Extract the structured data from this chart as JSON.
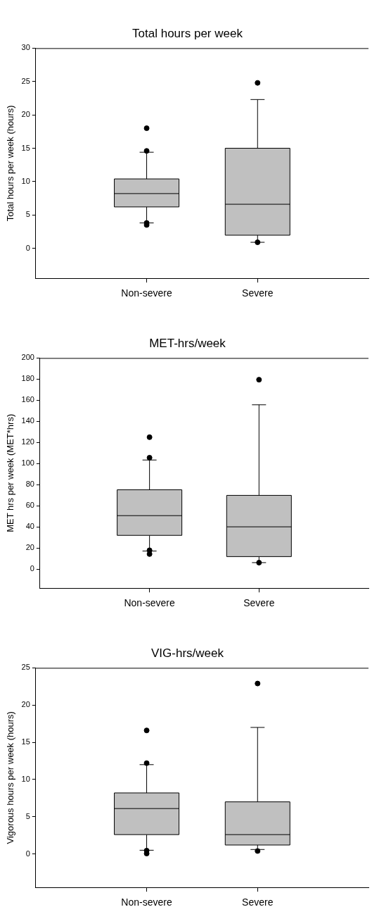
{
  "chart_data": [
    {
      "type": "box",
      "title": "Total hours per week",
      "ylabel": "Total hours per week (hours)",
      "categories": [
        "Non-severe",
        "Severe"
      ],
      "color": "#c0c0c0",
      "ylim": [
        -4.5,
        30
      ],
      "yticks": [
        0,
        5,
        10,
        15,
        20,
        25,
        30
      ],
      "grid": false,
      "boxes": [
        {
          "low": 3.8,
          "q1": 6.2,
          "median": 8.2,
          "q3": 10.4,
          "high": 14.4,
          "outliers": [
            18.0,
            14.6,
            3.8,
            3.5
          ]
        },
        {
          "low": 0.9,
          "q1": 1.96,
          "median": 6.6,
          "q3": 15.0,
          "high": 22.3,
          "outliers": [
            24.8,
            0.9
          ]
        }
      ]
    },
    {
      "type": "box",
      "title": "MET-hrs/week",
      "ylabel": "MET hrs per week (MET*hrs)",
      "categories": [
        "Non-severe",
        "Severe"
      ],
      "color": "#c0c0c0",
      "ylim": [
        -18,
        200
      ],
      "yticks": [
        0,
        20,
        40,
        60,
        80,
        100,
        120,
        140,
        160,
        180,
        200
      ],
      "grid": false,
      "boxes": [
        {
          "low": 17.2,
          "q1": 32,
          "median": 50.7,
          "q3": 75.2,
          "high": 103.4,
          "outliers": [
            125,
            105.6,
            17.9,
            14.3
          ]
        },
        {
          "low": 6.2,
          "q1": 11.9,
          "median": 40.1,
          "q3": 69.9,
          "high": 155.7,
          "outliers": [
            179.5,
            6.2
          ]
        }
      ]
    },
    {
      "type": "box",
      "title": "VIG-hrs/week",
      "ylabel": "Vigorous hours per week (hours)",
      "categories": [
        "Non-severe",
        "Severe"
      ],
      "color": "#c0c0c0",
      "ylim": [
        -4.5,
        25
      ],
      "yticks": [
        0,
        5,
        10,
        15,
        20,
        25
      ],
      "grid": false,
      "boxes": [
        {
          "low": 0.5,
          "q1": 2.6,
          "median": 6.1,
          "q3": 8.2,
          "high": 12.0,
          "outliers": [
            16.6,
            12.2,
            0.45,
            0.06
          ]
        },
        {
          "low": 0.6,
          "q1": 1.2,
          "median": 2.6,
          "q3": 7.0,
          "high": 17.0,
          "outliers": [
            22.9,
            0.4
          ]
        }
      ]
    }
  ]
}
